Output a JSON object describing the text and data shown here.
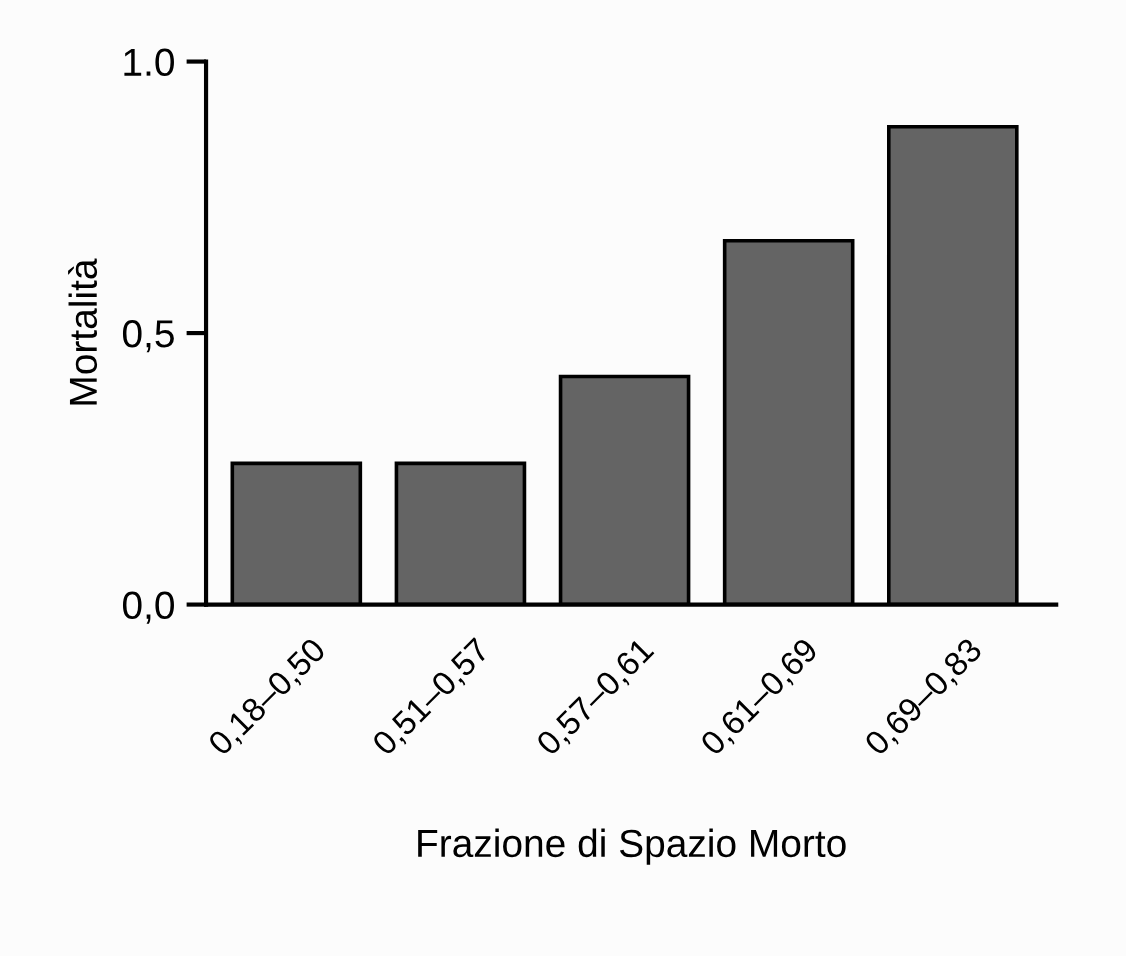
{
  "chart_data": {
    "type": "bar",
    "xlabel": "Frazione di Spazio Morto",
    "ylabel": "Mortalità",
    "categories": [
      "0,18–0,50",
      "0,51–0,57",
      "0,57–0,61",
      "0,61–0,69",
      "0,69–0,83"
    ],
    "values": [
      0.26,
      0.26,
      0.42,
      0.67,
      0.88
    ],
    "color": "#646464",
    "ylim": [
      0,
      1.0
    ],
    "yticks": [
      {
        "value": 0,
        "label": "0,0"
      },
      {
        "value": 0.5,
        "label": "0,5"
      },
      {
        "value": 1.0,
        "label": "1.0"
      }
    ]
  }
}
